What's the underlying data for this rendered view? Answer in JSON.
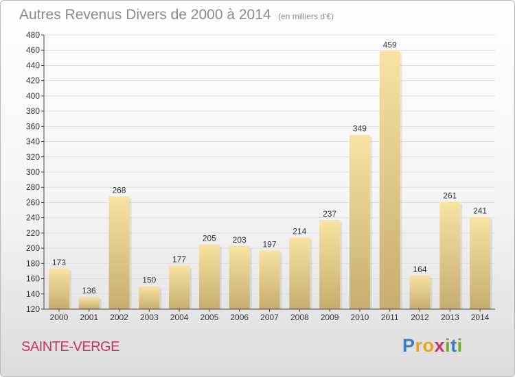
{
  "title": {
    "main": "Autres Revenus Divers de 2000 à 2014",
    "unit": "(en milliers d'€)"
  },
  "place": "SAINTE-VERGE",
  "logo": {
    "text": "Proxiti",
    "letters": [
      {
        "ch": "P",
        "color": "#3a7fc4"
      },
      {
        "ch": "r",
        "color": "#e8a21c"
      },
      {
        "ch": "o",
        "color": "#e8a21c"
      },
      {
        "ch": "x",
        "color": "#c8336a"
      },
      {
        "ch": "i",
        "color": "#6fae2c"
      },
      {
        "ch": "t",
        "color": "#3a7fc4"
      },
      {
        "ch": "i",
        "color": "#6fae2c"
      }
    ]
  },
  "chart_data": {
    "type": "bar",
    "categories": [
      "2000",
      "2001",
      "2002",
      "2003",
      "2004",
      "2005",
      "2006",
      "2007",
      "2008",
      "2009",
      "2010",
      "2011",
      "2012",
      "2013",
      "2014"
    ],
    "values": [
      173,
      136,
      268,
      150,
      177,
      205,
      203,
      197,
      214,
      237,
      349,
      459,
      164,
      261,
      241
    ],
    "ylim": [
      120,
      480
    ],
    "yticks": [
      120,
      140,
      160,
      180,
      200,
      220,
      240,
      260,
      280,
      300,
      320,
      340,
      360,
      380,
      400,
      420,
      440,
      460,
      480
    ],
    "grid": true,
    "legend": "none",
    "colors": {
      "bar_light": "#f8e3a2",
      "bar_dark": "#c5ad6e",
      "axis": "#444444",
      "grid": "#dedede",
      "text": "#333333"
    }
  }
}
